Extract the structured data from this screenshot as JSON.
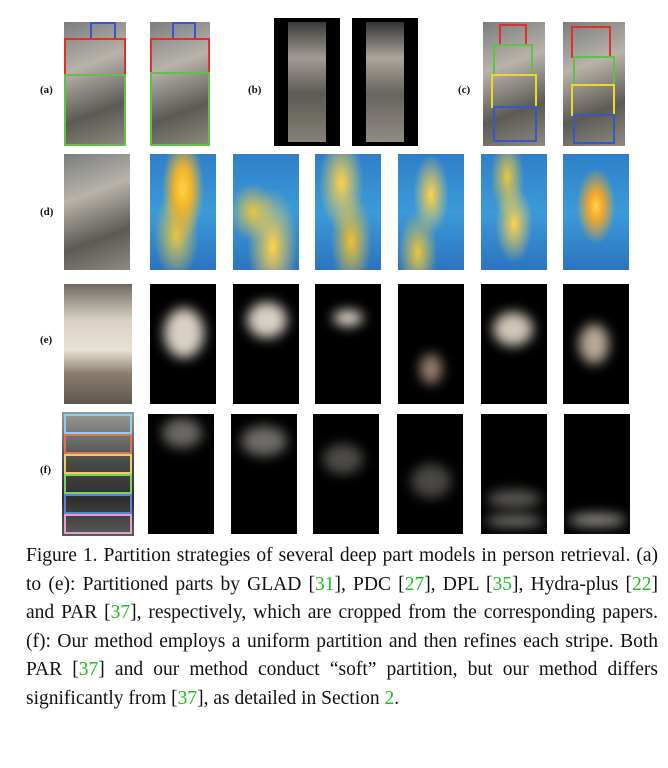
{
  "row_labels": [
    "(a)",
    "(b)",
    "(c)",
    "(d)",
    "(e)",
    "(f)"
  ],
  "caption": {
    "text_1": "Figure 1. Partition strategies of several deep part models in person retrieval. (a) to (e): Partitioned parts by GLAD [",
    "cite_1": "31",
    "text_2": "], PDC [",
    "cite_2": "27",
    "text_3": "], DPL [",
    "cite_3": "35",
    "text_4": "], Hydra-plus [",
    "cite_4": "22",
    "text_5": "] and PAR [",
    "cite_5": "37",
    "text_6": "], respectively, which are cropped from the corresponding papers. (f): Our method employs a uniform partition and then refines each stripe. Both PAR [",
    "cite_6": "37",
    "text_7": "] and our method conduct “soft” partition, but our method differs significantly from [",
    "cite_7": "37",
    "text_8": "], as detailed in Section ",
    "cite_8": "2",
    "text_9": "."
  },
  "colors": {
    "citation": "#1fbf1f",
    "box_red": "#e0302a",
    "box_green": "#5fc04a",
    "box_blue": "#3a55c8",
    "box_yellow": "#e8d830"
  }
}
